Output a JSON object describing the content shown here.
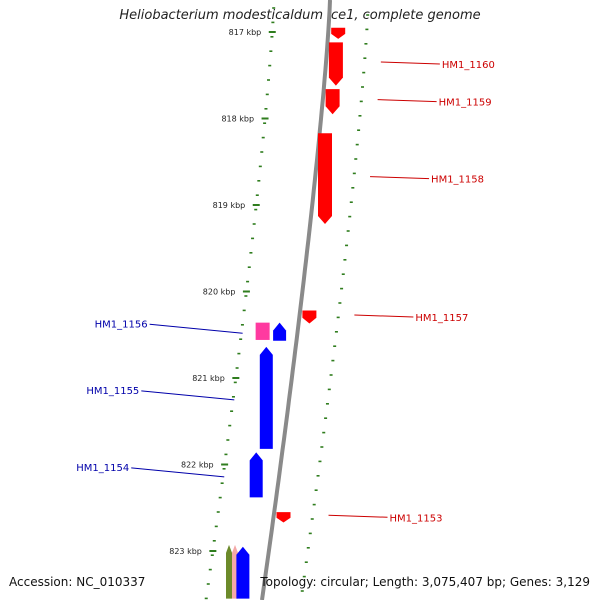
{
  "title": "Heliobacterium modesticaldum Ice1, complete genome",
  "footer": {
    "accession": "Accession: NC_010337",
    "summary": "Topology: circular; Length: 3,075,407 bp; Genes: 3,129"
  },
  "colors": {
    "backbone": "#8a8a8a",
    "tick": "#2f7d1e",
    "forward_gene": "#ff0000",
    "reverse_gene": "#0000ff",
    "forward_label": "#cc0000",
    "reverse_label": "#0000aa",
    "pink_gene": "#ff3aa0",
    "green_gene": "#6c8a2a",
    "salmon_gene": "#f4a8a8"
  },
  "ruler": [
    {
      "label": "817 kbp",
      "pos": 817
    },
    {
      "label": "818 kbp",
      "pos": 818
    },
    {
      "label": "819 kbp",
      "pos": 819
    },
    {
      "label": "820 kbp",
      "pos": 820
    },
    {
      "label": "821 kbp",
      "pos": 821
    },
    {
      "label": "822 kbp",
      "pos": 822
    },
    {
      "label": "823 kbp",
      "pos": 823
    }
  ],
  "genes_forward": [
    {
      "label": "",
      "start": 816.95,
      "end": 817.08
    },
    {
      "label": "HM1_1160",
      "start": 817.12,
      "end": 817.62
    },
    {
      "label": "HM1_1159",
      "start": 817.66,
      "end": 817.95
    },
    {
      "label": "HM1_1158",
      "start": 818.17,
      "end": 819.22
    },
    {
      "label": "HM1_1157",
      "start": 820.22,
      "end": 820.37
    },
    {
      "label": "HM1_1153",
      "start": 822.55,
      "end": 822.67
    }
  ],
  "genes_reverse": [
    {
      "label": "HM1_1156",
      "start": 820.36,
      "end": 820.56,
      "color": "pink"
    },
    {
      "label": "",
      "start": 820.36,
      "end": 820.57,
      "color": "blue"
    },
    {
      "label": "HM1_1155",
      "start": 820.64,
      "end": 821.82,
      "color": "blue"
    },
    {
      "label": "HM1_1154",
      "start": 821.86,
      "end": 822.38,
      "color": "blue"
    },
    {
      "label": "",
      "start": 822.93,
      "end": 823.55,
      "color": "green"
    },
    {
      "label": "",
      "start": 822.93,
      "end": 823.55,
      "color": "salmon"
    },
    {
      "label": "",
      "start": 822.95,
      "end": 823.55,
      "color": "blue"
    }
  ]
}
